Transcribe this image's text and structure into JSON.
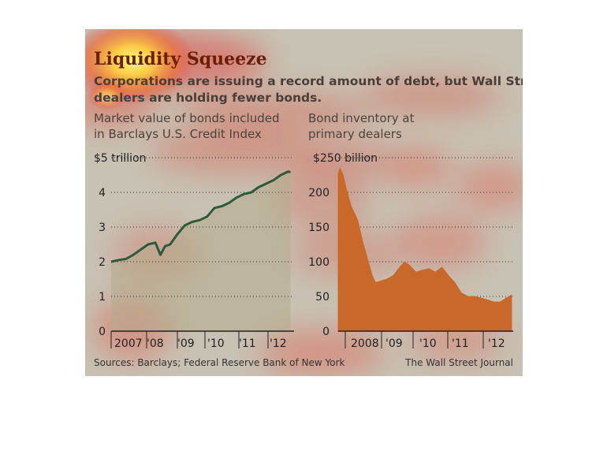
{
  "title": "Liquidity Squeeze",
  "subtitle": [
    "Corporations are issuing a record amount of debt, but Wall Street",
    "dealers are holding fewer bonds."
  ],
  "footer": {
    "sources": "Sources: Barclays; Federal Reserve Bank of New York",
    "publisher": "The Wall Street Journal"
  },
  "colors": {
    "background": "#c8c2b4",
    "title": "#6b1f08",
    "line_series": "#2d5a3a",
    "area_series": "#c8682a"
  },
  "chart_data": [
    {
      "type": "line",
      "title": "Market value of bonds included in Barclays U.S. Credit Index",
      "title_lines": [
        "Market value of bonds included",
        "in Barclays U.S. Credit Index"
      ],
      "ylabel": "",
      "yticks": [
        "0",
        "1",
        "2",
        "3",
        "4",
        "$5 trillion"
      ],
      "ylim": [
        0,
        5
      ],
      "xticks": [
        "2007",
        "'08",
        "'09",
        "'10",
        "'11",
        "'12"
      ],
      "xlim": [
        2007,
        2013.2
      ],
      "grid": true,
      "series": [
        {
          "x": [
            2007.0,
            2007.25,
            2007.5,
            2007.75,
            2008.0,
            2008.25,
            2008.5,
            2008.67,
            2008.83,
            2009.0,
            2009.25,
            2009.5,
            2009.75,
            2010.0,
            2010.25,
            2010.5,
            2010.75,
            2011.0,
            2011.25,
            2011.5,
            2011.75,
            2012.0,
            2012.25,
            2012.5,
            2012.75,
            2013.0,
            2013.08
          ],
          "y": [
            2.0,
            2.05,
            2.08,
            2.2,
            2.35,
            2.5,
            2.55,
            2.2,
            2.45,
            2.5,
            2.8,
            3.05,
            3.15,
            3.2,
            3.3,
            3.55,
            3.6,
            3.7,
            3.85,
            3.95,
            4.0,
            4.15,
            4.25,
            4.35,
            4.5,
            4.6,
            4.58
          ]
        }
      ]
    },
    {
      "type": "area",
      "title": "Bond inventory at primary dealers",
      "title_lines": [
        "Bond inventory at",
        "primary dealers"
      ],
      "ylabel": "",
      "yticks": [
        "0",
        "50",
        "100",
        "150",
        "200",
        "$250 billion"
      ],
      "ylim": [
        0,
        250
      ],
      "xticks": [
        "2008",
        "'09",
        "'10",
        "'11",
        "'12"
      ],
      "xlim": [
        2007.8,
        2013.2
      ],
      "grid": true,
      "series": [
        {
          "x": [
            2007.8,
            2007.85,
            2007.95,
            2008.05,
            2008.2,
            2008.4,
            2008.55,
            2008.7,
            2008.85,
            2008.95,
            2009.1,
            2009.3,
            2009.5,
            2009.7,
            2009.85,
            2010.0,
            2010.2,
            2010.4,
            2010.6,
            2010.8,
            2011.0,
            2011.2,
            2011.4,
            2011.6,
            2011.8,
            2012.0,
            2012.2,
            2012.4,
            2012.6,
            2012.8,
            2013.0,
            2013.15
          ],
          "y": [
            225,
            235,
            225,
            205,
            180,
            160,
            130,
            105,
            80,
            70,
            72,
            75,
            80,
            92,
            100,
            95,
            85,
            88,
            90,
            85,
            92,
            80,
            70,
            55,
            50,
            50,
            48,
            45,
            42,
            42,
            48,
            52
          ]
        }
      ]
    }
  ]
}
